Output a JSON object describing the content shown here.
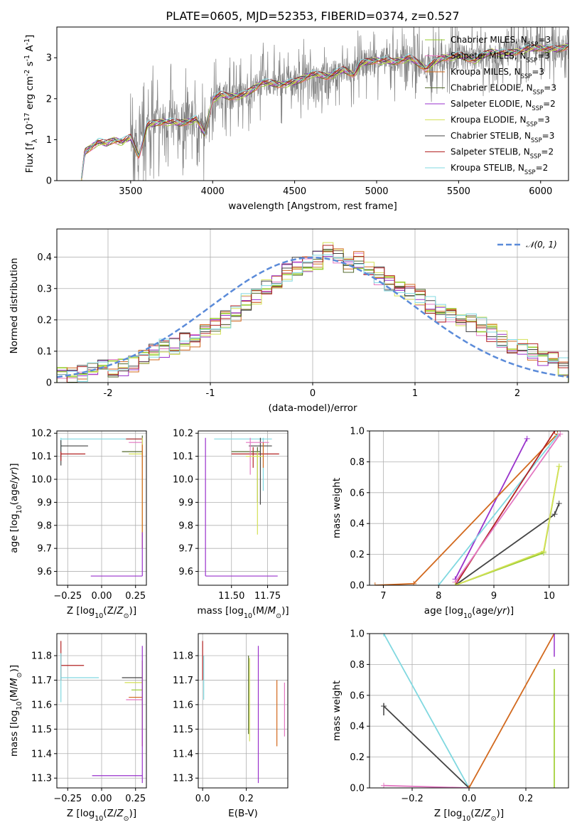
{
  "title": "PLATE=0605, MJD=52353, FIBERID=0374, z=0.527",
  "colors": {
    "data": "#808080",
    "normal": "#5b8bd9",
    "grid": "#b0b0b0"
  },
  "chart_data": [
    {
      "id": "spectrum",
      "type": "line",
      "xlabel": "wavelength [Angstrom, rest frame]",
      "ylabel": "Flux [f$_{λ}$ 10$^{-17}$ erg cm$^{-2}$ s$^{-1}$ A$^{-1}$]",
      "xlim": [
        3050,
        6170
      ],
      "ylim": [
        0,
        3.75
      ],
      "xticks": [
        3500,
        4000,
        4500,
        5000,
        5500,
        6000
      ],
      "yticks": [
        0,
        1,
        2,
        3
      ],
      "grid": false,
      "legend_position": "right",
      "series": [
        {
          "name": "Chabrier MILES, N_SSP=3",
          "color": "#9acd32"
        },
        {
          "name": "Salpeter MILES, N_SSP=3",
          "color": "#e377c2"
        },
        {
          "name": "Kroupa MILES, N_SSP=3",
          "color": "#d2691e"
        },
        {
          "name": "Chabrier ELODIE, N_SSP=3",
          "color": "#556b2f"
        },
        {
          "name": "Salpeter ELODIE, N_SSP=2",
          "color": "#9932cc"
        },
        {
          "name": "Kroupa ELODIE, N_SSP=3",
          "color": "#d4e157"
        },
        {
          "name": "Chabrier STELIB, N_SSP=3",
          "color": "#444444"
        },
        {
          "name": "Salpeter STELIB, N_SSP=2",
          "color": "#b22222"
        },
        {
          "name": "Kroupa STELIB, N_SSP=2",
          "color": "#80d8e0"
        }
      ],
      "model_shape": {
        "x": [
          3200,
          3220,
          3300,
          3350,
          3400,
          3450,
          3500,
          3550,
          3600,
          3700,
          3800,
          3900,
          3950,
          4000,
          4050,
          4100,
          4200,
          4300,
          4400,
          4500,
          4600,
          4700,
          4800,
          4861,
          4900,
          5000,
          5100,
          5200,
          5300,
          5400,
          5500,
          5600,
          5700,
          5800,
          5900,
          6000,
          6100,
          6170
        ],
        "y": [
          0,
          0.7,
          0.95,
          0.9,
          1.0,
          0.95,
          1.05,
          0.6,
          1.35,
          1.45,
          1.4,
          1.5,
          1.15,
          2.0,
          2.1,
          2.05,
          2.1,
          2.4,
          2.35,
          2.4,
          2.6,
          2.55,
          2.7,
          2.6,
          2.85,
          2.95,
          2.9,
          3.0,
          2.75,
          3.0,
          3.05,
          2.95,
          3.15,
          3.1,
          3.2,
          3.25,
          3.2,
          3.3
        ]
      }
    },
    {
      "id": "residuals",
      "type": "histogram",
      "xlabel": "(data-model)/error",
      "ylabel": "Normed distribution",
      "xlim": [
        -2.5,
        2.5
      ],
      "ylim": [
        0,
        0.49
      ],
      "xticks": [
        -2,
        -1,
        0,
        1,
        2
      ],
      "yticks": [
        0.0,
        0.1,
        0.2,
        0.3,
        0.4
      ],
      "grid": true,
      "legend_position": "top-right",
      "reference_label": "𝒩(0, 1)",
      "bin_edges": [
        -2.5,
        -2.4,
        -2.3,
        -2.2,
        -2.1,
        -2.0,
        -1.9,
        -1.8,
        -1.7,
        -1.6,
        -1.5,
        -1.4,
        -1.3,
        -1.2,
        -1.1,
        -1.0,
        -0.9,
        -0.8,
        -0.7,
        -0.6,
        -0.5,
        -0.4,
        -0.3,
        -0.2,
        -0.1,
        0.0,
        0.1,
        0.2,
        0.3,
        0.4,
        0.5,
        0.6,
        0.7,
        0.8,
        0.9,
        1.0,
        1.1,
        1.2,
        1.3,
        1.4,
        1.5,
        1.6,
        1.7,
        1.8,
        1.9,
        2.0,
        2.1,
        2.2,
        2.3,
        2.4,
        2.5
      ],
      "base_density": [
        0.02,
        0.025,
        0.03,
        0.04,
        0.045,
        0.045,
        0.05,
        0.06,
        0.08,
        0.1,
        0.11,
        0.12,
        0.13,
        0.14,
        0.16,
        0.18,
        0.2,
        0.22,
        0.26,
        0.28,
        0.3,
        0.33,
        0.35,
        0.37,
        0.38,
        0.39,
        0.42,
        0.4,
        0.38,
        0.39,
        0.36,
        0.34,
        0.32,
        0.3,
        0.29,
        0.27,
        0.25,
        0.22,
        0.21,
        0.2,
        0.19,
        0.18,
        0.16,
        0.14,
        0.12,
        0.12,
        0.1,
        0.08,
        0.07,
        0.05
      ]
    },
    {
      "id": "age-vs-Z",
      "type": "errorbar",
      "xlabel": "Z [log$_{10}$($Z/Z_{\\odot}$)]",
      "ylabel": "age  [log$_{10}$($age/yr$)]",
      "xlim": [
        -0.33,
        0.33
      ],
      "ylim": [
        9.54,
        10.21
      ],
      "xticks": [
        -0.25,
        0.0,
        0.25
      ],
      "xticklabels": [
        "−0.25",
        "0.00",
        "0.25"
      ],
      "yticks": [
        9.6,
        9.7,
        9.8,
        9.9,
        10.0,
        10.1,
        10.2
      ],
      "yticklabels": [
        "9.6",
        "9.7",
        "9.8",
        "9.9",
        "10.0",
        "10.1",
        "10.2"
      ],
      "grid": true
    },
    {
      "id": "age-vs-mass",
      "type": "errorbar",
      "xlabel": "mass [log$_{10}$($M/M_{\\odot}$)]",
      "ylabel": "",
      "xlim": [
        11.27,
        11.89
      ],
      "ylim": [
        9.54,
        10.21
      ],
      "xticks": [
        11.5,
        11.75
      ],
      "xticklabels": [
        "11.50",
        "11.75"
      ],
      "yticks": [
        9.6,
        9.7,
        9.8,
        9.9,
        10.0,
        10.1,
        10.2
      ],
      "yticklabels": [
        "9.6",
        "9.7",
        "9.8",
        "9.9",
        "10.0",
        "10.1",
        "10.2"
      ],
      "grid": true
    },
    {
      "id": "massweight-vs-age",
      "type": "line",
      "xlabel": "age  [log$_{10}$($age/yr$)]",
      "ylabel": "mass weight",
      "xlim": [
        6.75,
        10.35
      ],
      "ylim": [
        0,
        1
      ],
      "xticks": [
        7,
        8,
        9,
        10
      ],
      "yticks": [
        0.0,
        0.2,
        0.4,
        0.6,
        0.8,
        1.0
      ],
      "yticklabels": [
        "0.0",
        "0.2",
        "0.4",
        "0.6",
        "0.8",
        "1.0"
      ],
      "grid": true,
      "series": [
        {
          "color": "#9932cc",
          "x": [
            8.3,
            9.6
          ],
          "y": [
            0.04,
            0.95
          ]
        },
        {
          "color": "#d2691e",
          "x": [
            6.85,
            7.55,
            10.15
          ],
          "y": [
            0.0,
            0.01,
            0.98
          ]
        },
        {
          "color": "#80d8e0",
          "x": [
            8.0,
            10.15
          ],
          "y": [
            0.0,
            0.97
          ]
        },
        {
          "color": "#b22222",
          "x": [
            8.3,
            10.1
          ],
          "y": [
            0.0,
            1.0
          ]
        },
        {
          "color": "#e377c2",
          "x": [
            8.3,
            10.2
          ],
          "y": [
            0.02,
            0.98
          ]
        },
        {
          "color": "#444444",
          "x": [
            8.3,
            10.1,
            10.18
          ],
          "y": [
            0.0,
            0.46,
            0.53
          ]
        },
        {
          "color": "#9acd32",
          "x": [
            8.3,
            9.9,
            10.18
          ],
          "y": [
            0.0,
            0.21,
            0.77
          ]
        },
        {
          "color": "#d4e157",
          "x": [
            8.3,
            9.9,
            10.18
          ],
          "y": [
            0.0,
            0.22,
            0.77
          ]
        }
      ]
    },
    {
      "id": "mass-vs-Z",
      "type": "errorbar",
      "xlabel": "Z [log$_{10}$($Z/Z_{\\odot}$)]",
      "ylabel": "mass [log$_{10}$($M/M_{\\odot}$)]",
      "xlim": [
        -0.33,
        0.33
      ],
      "ylim": [
        11.26,
        11.89
      ],
      "xticks": [
        -0.25,
        0.0,
        0.25
      ],
      "xticklabels": [
        "−0.25",
        "0.00",
        "0.25"
      ],
      "yticks": [
        11.3,
        11.4,
        11.5,
        11.6,
        11.7,
        11.8
      ],
      "yticklabels": [
        "11.3",
        "11.4",
        "11.5",
        "11.6",
        "11.7",
        "11.8"
      ],
      "grid": true
    },
    {
      "id": "mass-vs-ebv",
      "type": "errorbar",
      "xlabel": "E(B-V)",
      "ylabel": "",
      "xlim": [
        -0.02,
        0.39
      ],
      "ylim": [
        11.26,
        11.89
      ],
      "xticks": [
        0.0,
        0.2
      ],
      "xticklabels": [
        "0.0",
        "0.2"
      ],
      "yticks": [
        11.3,
        11.4,
        11.5,
        11.6,
        11.7,
        11.8
      ],
      "yticklabels": [
        "11.3",
        "11.4",
        "11.5",
        "11.6",
        "11.7",
        "11.8"
      ],
      "grid": true
    },
    {
      "id": "massweight-vs-Z",
      "type": "line",
      "xlabel": "Z [log$_{10}$($Z/Z_{\\odot}$)]",
      "ylabel": "mass weight",
      "xlim": [
        -0.35,
        0.35
      ],
      "ylim": [
        0,
        1
      ],
      "xticks": [
        -0.2,
        0.0,
        0.2
      ],
      "xticklabels": [
        "−0.2",
        "0.0",
        "0.2"
      ],
      "yticks": [
        0.0,
        0.2,
        0.4,
        0.6,
        0.8,
        1.0
      ],
      "yticklabels": [
        "0.0",
        "0.2",
        "0.4",
        "0.6",
        "0.8",
        "1.0"
      ],
      "grid": true,
      "series": [
        {
          "color": "#80d8e0",
          "x": [
            -0.3,
            0.0
          ],
          "y": [
            1.0,
            0.0
          ]
        },
        {
          "color": "#444444",
          "x": [
            -0.3,
            0.0
          ],
          "y": [
            0.53,
            0.0
          ]
        },
        {
          "color": "#e377c2",
          "x": [
            -0.3,
            0.0
          ],
          "y": [
            0.015,
            0.0
          ]
        },
        {
          "color": "#d2691e",
          "x": [
            0.0,
            0.3
          ],
          "y": [
            0.0,
            1.0
          ]
        }
      ]
    }
  ]
}
